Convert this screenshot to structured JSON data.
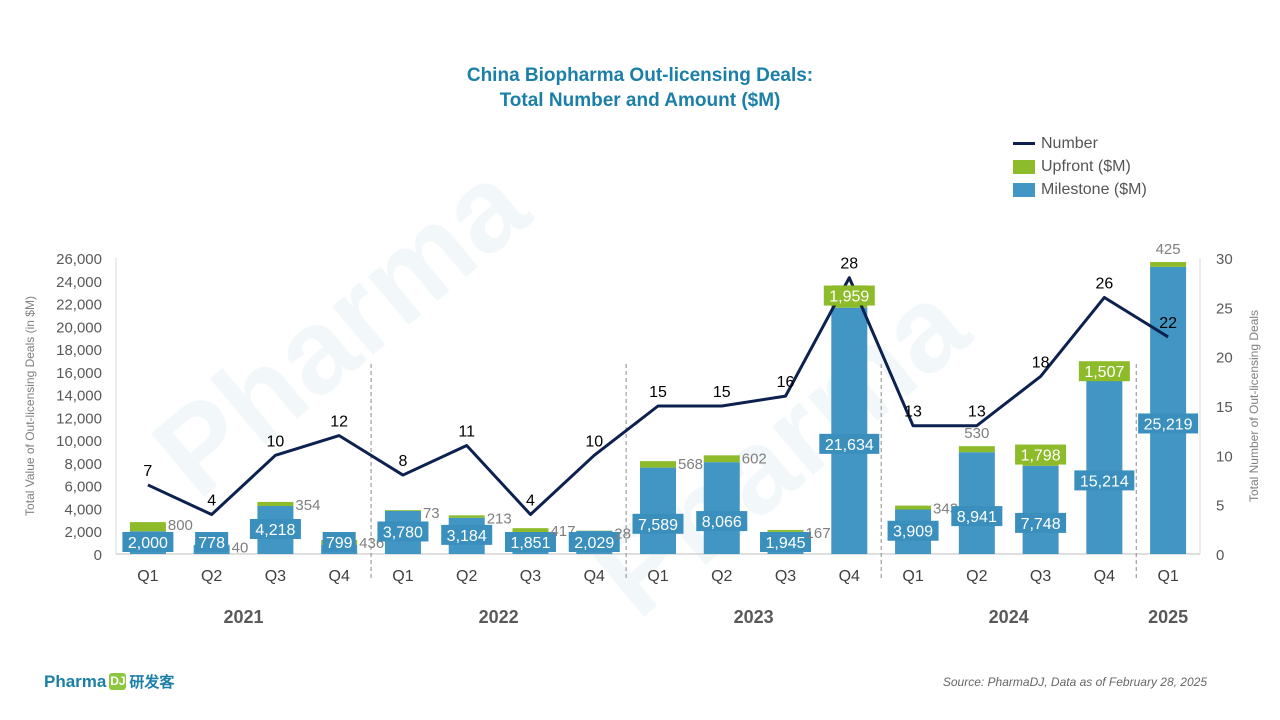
{
  "title_line1": "China Biopharma Out-licensing Deals:",
  "title_line2": "Total Number and Amount ($M)",
  "legend": {
    "number": "Number",
    "upfront": "Upfront ($M)",
    "milestone": "Milestone ($M)"
  },
  "source": "Source: PharmaDJ, Data as of February 28, 2025",
  "logo": {
    "text": "Pharma",
    "box": "DJ",
    "cn": "研发客"
  },
  "watermark": "Pharma",
  "colors": {
    "milestone": "#4196c4",
    "upfront": "#8dbb2a",
    "number_line": "#0d2150",
    "title": "#1b7fa8",
    "milestone_label_bg": "#3a8fbd"
  },
  "chart_data": {
    "type": "bar",
    "stacked": true,
    "categories": [
      "Q1",
      "Q2",
      "Q3",
      "Q4",
      "Q1",
      "Q2",
      "Q3",
      "Q4",
      "Q1",
      "Q2",
      "Q3",
      "Q4",
      "Q1",
      "Q2",
      "Q3",
      "Q4",
      "Q1"
    ],
    "years": [
      {
        "label": "2021",
        "quarters": 4
      },
      {
        "label": "2022",
        "quarters": 4
      },
      {
        "label": "2023",
        "quarters": 4
      },
      {
        "label": "2024",
        "quarters": 4
      },
      {
        "label": "2025",
        "quarters": 1
      }
    ],
    "series": [
      {
        "name": "Milestone ($M)",
        "values": [
          2000,
          778,
          4218,
          799,
          3780,
          3184,
          1851,
          2029,
          7589,
          8066,
          1945,
          21634,
          3909,
          8941,
          7748,
          15214,
          25219
        ]
      },
      {
        "name": "Upfront ($M)",
        "values": [
          800,
          40,
          354,
          436,
          73,
          213,
          417,
          28,
          568,
          602,
          167,
          1959,
          343,
          530,
          1798,
          1507,
          425
        ]
      },
      {
        "name": "Number",
        "axis": "right",
        "values": [
          7,
          4,
          10,
          12,
          8,
          11,
          4,
          10,
          15,
          15,
          16,
          28,
          13,
          13,
          18,
          26,
          22
        ]
      }
    ],
    "ylabel": "Total Value of Out-licensing Deals (in $M)",
    "y2label": "Total Number of Out-licensing Deals",
    "ylim": [
      0,
      26000
    ],
    "yticks": [
      0,
      2000,
      4000,
      6000,
      8000,
      10000,
      12000,
      14000,
      16000,
      18000,
      20000,
      22000,
      24000,
      26000
    ],
    "y2lim": [
      0,
      30
    ],
    "y2ticks": [
      0,
      5,
      10,
      15,
      20,
      25,
      30
    ],
    "legend_position": "top-right"
  }
}
